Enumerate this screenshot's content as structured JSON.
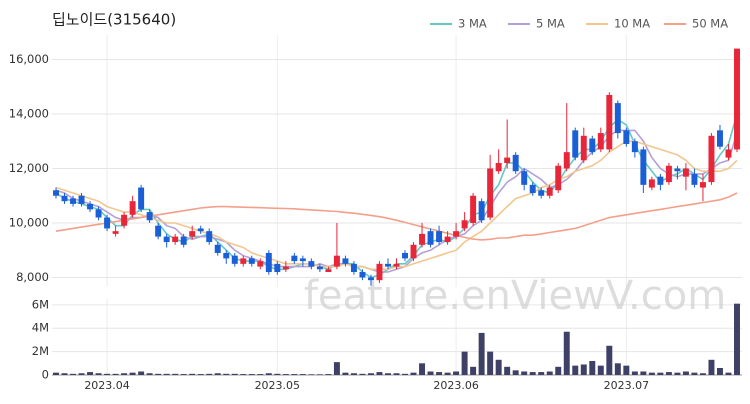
{
  "chart_data": [
    {
      "type": "candlestick",
      "title": "딥노이드(315640)",
      "categories": [
        null,
        null,
        null,
        null,
        null,
        null,
        "2023.04",
        null,
        null,
        null,
        null,
        null,
        null,
        null,
        null,
        null,
        null,
        null,
        null,
        null,
        null,
        null,
        null,
        null,
        null,
        null,
        "2023.05",
        null,
        null,
        null,
        null,
        null,
        null,
        null,
        null,
        null,
        null,
        null,
        null,
        null,
        null,
        null,
        null,
        null,
        null,
        null,
        null,
        "2023.06",
        null,
        null,
        null,
        null,
        null,
        null,
        null,
        null,
        null,
        null,
        null,
        null,
        null,
        null,
        null,
        null,
        null,
        null,
        null,
        "2023.07",
        null,
        null,
        null,
        null,
        null,
        null,
        null,
        null,
        null,
        null,
        null,
        null,
        null
      ],
      "open": [
        11200,
        11000,
        10900,
        11000,
        10700,
        10500,
        10200,
        9600,
        9900,
        10300,
        11300,
        10400,
        9900,
        9500,
        9300,
        9500,
        9500,
        9800,
        9700,
        9200,
        8900,
        8800,
        8500,
        8700,
        8400,
        8900,
        8500,
        8300,
        8800,
        8700,
        8600,
        8400,
        8200,
        8400,
        8700,
        8500,
        8200,
        8000,
        7900,
        8500,
        8400,
        8900,
        8700,
        9200,
        9700,
        9700,
        9300,
        9500,
        9800,
        10000,
        10800,
        10200,
        11900,
        12200,
        12500,
        11900,
        11400,
        11200,
        11000,
        11200,
        12000,
        13400,
        12300,
        13100,
        12700,
        12700,
        14400,
        13400,
        13000,
        12700,
        11300,
        11700,
        11500,
        12000,
        11700,
        11800,
        11300,
        11500,
        13400,
        12400,
        12700
      ],
      "high": [
        11300,
        11100,
        11000,
        11100,
        10800,
        10600,
        10300,
        9900,
        10400,
        11000,
        11400,
        10500,
        10000,
        9600,
        9600,
        9600,
        9900,
        9900,
        9800,
        9300,
        9000,
        8900,
        8800,
        8800,
        8700,
        9000,
        8600,
        8600,
        8900,
        8800,
        8700,
        8500,
        8400,
        10000,
        8800,
        8600,
        8300,
        8100,
        8600,
        8700,
        8700,
        9000,
        9300,
        10000,
        9800,
        9900,
        9700,
        10000,
        10400,
        11100,
        10900,
        12500,
        12700,
        13800,
        12600,
        12000,
        11500,
        11300,
        11400,
        12200,
        14400,
        13500,
        13500,
        13200,
        13500,
        14800,
        14500,
        13500,
        13100,
        12800,
        11700,
        11800,
        12200,
        12100,
        12200,
        12000,
        11800,
        13300,
        13600,
        12900,
        16400
      ],
      "low": [
        10900,
        10700,
        10600,
        10600,
        10400,
        10100,
        9700,
        9500,
        9800,
        10200,
        10400,
        10000,
        9400,
        9100,
        9200,
        9100,
        9400,
        9600,
        9200,
        8800,
        8500,
        8400,
        8400,
        8400,
        8300,
        8100,
        8100,
        8200,
        8500,
        8400,
        8300,
        8200,
        8200,
        8300,
        8400,
        8100,
        7900,
        7700,
        7800,
        8300,
        8300,
        8600,
        8600,
        9100,
        9100,
        9200,
        9200,
        9400,
        9700,
        9900,
        10000,
        10100,
        11800,
        12000,
        11800,
        11200,
        11000,
        10900,
        10900,
        11100,
        11900,
        12300,
        12200,
        12500,
        12600,
        12600,
        13100,
        12800,
        12400,
        11100,
        11200,
        11200,
        11400,
        11600,
        11200,
        11300,
        10800,
        11400,
        12700,
        12300,
        12600
      ],
      "close": [
        11000,
        10800,
        10700,
        10700,
        10500,
        10200,
        9800,
        9700,
        10300,
        10800,
        10500,
        10100,
        9500,
        9300,
        9500,
        9200,
        9700,
        9700,
        9300,
        8900,
        8700,
        8500,
        8700,
        8500,
        8600,
        8200,
        8200,
        8400,
        8600,
        8600,
        8400,
        8300,
        8300,
        8800,
        8500,
        8200,
        8000,
        7900,
        8500,
        8400,
        8500,
        8700,
        9200,
        9600,
        9200,
        9300,
        9500,
        9700,
        10100,
        11000,
        10100,
        12000,
        12200,
        12400,
        11900,
        11400,
        11100,
        11000,
        11300,
        12100,
        12600,
        12400,
        13200,
        12600,
        13300,
        14700,
        13300,
        12900,
        12600,
        11400,
        11600,
        11400,
        12100,
        11900,
        12000,
        11400,
        11500,
        13200,
        12800,
        12700,
        16400
      ],
      "up_color": "#e8263a",
      "down_color": "#1a5fd6",
      "series": [
        {
          "name": "3 MA",
          "color": "#62c9c6",
          "values": [
            11100,
            10900,
            10800,
            10700,
            10600,
            10500,
            10200,
            9900,
            9900,
            10300,
            10500,
            10500,
            10000,
            9600,
            9400,
            9300,
            9500,
            9500,
            9600,
            9300,
            9000,
            8700,
            8600,
            8600,
            8600,
            8400,
            8300,
            8300,
            8400,
            8500,
            8500,
            8400,
            8300,
            8500,
            8500,
            8500,
            8200,
            8000,
            8100,
            8300,
            8500,
            8500,
            8800,
            9200,
            9300,
            9400,
            9300,
            9500,
            9800,
            10300,
            10400,
            11000,
            11400,
            12200,
            12200,
            11900,
            11500,
            11200,
            11100,
            11500,
            12000,
            12400,
            12700,
            12700,
            13000,
            13500,
            13800,
            13600,
            12900,
            12300,
            11900,
            11500,
            11700,
            11800,
            12000,
            11800,
            11600,
            12000,
            12500,
            12900,
            14000
          ]
        },
        {
          "name": "5 MA",
          "color": "#b4a0d6",
          "values": [
            11200,
            11100,
            10900,
            10800,
            10700,
            10600,
            10400,
            10200,
            10100,
            10200,
            10200,
            10300,
            10200,
            9900,
            9800,
            9500,
            9400,
            9500,
            9500,
            9400,
            9300,
            9000,
            8800,
            8700,
            8600,
            8500,
            8400,
            8400,
            8400,
            8400,
            8400,
            8500,
            8400,
            8500,
            8500,
            8400,
            8400,
            8300,
            8200,
            8200,
            8300,
            8400,
            8700,
            8900,
            9000,
            9200,
            9400,
            9500,
            9600,
            9900,
            10100,
            10600,
            11100,
            11500,
            11700,
            12000,
            11800,
            11600,
            11300,
            11400,
            11600,
            11900,
            12300,
            12600,
            12800,
            13200,
            13400,
            13400,
            13400,
            13000,
            12400,
            12000,
            11800,
            11700,
            11800,
            11800,
            11800,
            12000,
            12200,
            12300,
            13300
          ]
        },
        {
          "name": "10 MA",
          "color": "#f2c68f",
          "values": [
            11300,
            11200,
            11100,
            11000,
            10900,
            10800,
            10600,
            10500,
            10400,
            10400,
            10300,
            10200,
            10100,
            10000,
            10000,
            9900,
            9800,
            9700,
            9600,
            9500,
            9300,
            9200,
            9100,
            8900,
            8800,
            8700,
            8600,
            8500,
            8500,
            8500,
            8500,
            8400,
            8400,
            8400,
            8500,
            8400,
            8400,
            8300,
            8300,
            8300,
            8400,
            8400,
            8500,
            8600,
            8700,
            8800,
            8900,
            9000,
            9300,
            9500,
            9700,
            10000,
            10300,
            10600,
            10900,
            11000,
            11100,
            11300,
            11400,
            11600,
            11700,
            11900,
            12000,
            12100,
            12300,
            12600,
            12800,
            13000,
            13000,
            12900,
            12800,
            12700,
            12600,
            12500,
            12300,
            12000,
            11900,
            11900,
            11900,
            12000,
            12300
          ]
        },
        {
          "name": "50 MA",
          "color": "#f3a08b",
          "values": [
            9700,
            9750,
            9800,
            9850,
            9900,
            9950,
            10000,
            10050,
            10100,
            10150,
            10200,
            10250,
            10300,
            10350,
            10400,
            10450,
            10500,
            10550,
            10580,
            10600,
            10600,
            10590,
            10580,
            10570,
            10560,
            10550,
            10540,
            10530,
            10520,
            10500,
            10480,
            10460,
            10440,
            10420,
            10390,
            10360,
            10320,
            10280,
            10230,
            10170,
            10100,
            10020,
            9940,
            9860,
            9780,
            9700,
            9620,
            9540,
            9470,
            9410,
            9380,
            9400,
            9450,
            9450,
            9500,
            9550,
            9550,
            9600,
            9650,
            9700,
            9750,
            9800,
            9900,
            10000,
            10100,
            10200,
            10250,
            10300,
            10350,
            10400,
            10450,
            10500,
            10550,
            10600,
            10650,
            10700,
            10750,
            10800,
            10850,
            10950,
            11100
          ]
        }
      ],
      "ylim": [
        7650,
        16900
      ],
      "yticks": [
        {
          "value": 8000,
          "label": "8,000"
        },
        {
          "value": 10000,
          "label": "10,000"
        },
        {
          "value": 12000,
          "label": "12,000"
        },
        {
          "value": 14000,
          "label": "14,000"
        },
        {
          "value": 16000,
          "label": "16,000"
        }
      ],
      "grid": true,
      "legend": "top-right"
    },
    {
      "type": "bar",
      "color": "#3e4066",
      "values": [
        200000,
        150000,
        100000,
        150000,
        250000,
        150000,
        100000,
        100000,
        150000,
        200000,
        300000,
        150000,
        100000,
        100000,
        100000,
        80000,
        100000,
        80000,
        100000,
        150000,
        100000,
        100000,
        80000,
        80000,
        80000,
        150000,
        100000,
        80000,
        80000,
        80000,
        60000,
        60000,
        80000,
        1100000,
        200000,
        150000,
        100000,
        150000,
        250000,
        150000,
        150000,
        100000,
        200000,
        1000000,
        300000,
        250000,
        200000,
        300000,
        2000000,
        700000,
        3600000,
        2000000,
        1300000,
        700000,
        400000,
        300000,
        250000,
        250000,
        300000,
        700000,
        3700000,
        800000,
        900000,
        1200000,
        800000,
        2500000,
        1000000,
        800000,
        300000,
        300000,
        200000,
        200000,
        250000,
        200000,
        300000,
        200000,
        150000,
        1300000,
        600000,
        200000,
        6100000
      ],
      "ylim": [
        0,
        6500000
      ],
      "yticks": [
        0,
        {
          "value": 2000000,
          "label": "2M"
        },
        {
          "value": 4000000,
          "label": "4M"
        },
        {
          "value": 6000000,
          "label": "6M"
        }
      ],
      "grid": true
    }
  ],
  "watermark": "feature.enViewV.com"
}
